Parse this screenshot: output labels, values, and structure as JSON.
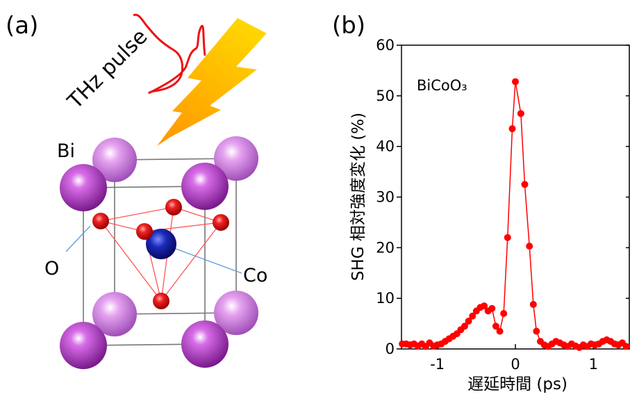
{
  "panel_a": {
    "label": "(a)",
    "pulse_label": "THz pulse",
    "atoms": {
      "bi": "Bi",
      "o": "O",
      "co": "Co"
    }
  },
  "chart_data": {
    "type": "line",
    "panel_label": "(b)",
    "annotation": "BiCoO₃",
    "x_label": "遅延時間 (ps)",
    "y_label": "SHG 相対強度変化 (%)",
    "xlim": [
      -1.46,
      1.46
    ],
    "ylim": [
      0,
      60
    ],
    "xticks": [
      -1,
      0,
      1
    ],
    "yticks": [
      0,
      10,
      20,
      30,
      40,
      50,
      60
    ],
    "series": [
      {
        "color": "#ff0000",
        "x": [
          -1.45,
          -1.4,
          -1.35,
          -1.3,
          -1.25,
          -1.2,
          -1.15,
          -1.1,
          -1.05,
          -1.0,
          -0.95,
          -0.9,
          -0.85,
          -0.8,
          -0.75,
          -0.7,
          -0.65,
          -0.6,
          -0.55,
          -0.5,
          -0.45,
          -0.4,
          -0.35,
          -0.3,
          -0.25,
          -0.2,
          -0.15,
          -0.1,
          -0.04,
          0.0,
          0.07,
          0.12,
          0.18,
          0.23,
          0.27,
          0.32,
          0.37,
          0.42,
          0.47,
          0.52,
          0.57,
          0.62,
          0.67,
          0.72,
          0.77,
          0.82,
          0.87,
          0.92,
          0.97,
          1.02,
          1.07,
          1.12,
          1.17,
          1.22,
          1.27,
          1.32,
          1.37,
          1.42
        ],
        "values": [
          1.0,
          1.0,
          0.8,
          1.0,
          0.6,
          1.0,
          0.5,
          1.2,
          0.6,
          0.8,
          1.0,
          1.5,
          2.0,
          2.5,
          3.0,
          3.8,
          4.5,
          5.5,
          6.5,
          7.5,
          8.2,
          8.5,
          7.5,
          8.0,
          4.5,
          3.5,
          7.0,
          22.0,
          43.5,
          52.8,
          46.5,
          32.5,
          20.3,
          8.8,
          3.5,
          1.5,
          0.8,
          0.5,
          1.0,
          1.5,
          1.2,
          0.8,
          0.5,
          1.0,
          0.6,
          0.3,
          0.8,
          0.5,
          1.0,
          0.8,
          1.0,
          1.5,
          1.8,
          1.5,
          1.0,
          0.8,
          1.2,
          0.5
        ]
      }
    ]
  }
}
